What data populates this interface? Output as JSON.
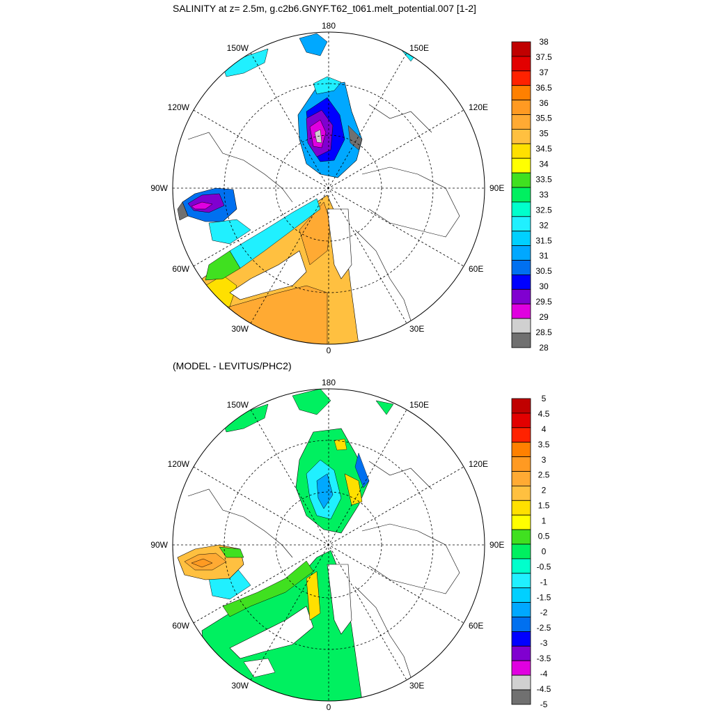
{
  "panels": [
    {
      "id": "salinity",
      "title": "SALINITY at z=   2.5m, g.c2b6.GNYF.T62_t061.melt_potential.007 [1-2]",
      "variable": "salinity",
      "colorbar": {
        "labels": [
          "38",
          "37.5",
          "37",
          "36.5",
          "36",
          "35.5",
          "35",
          "34.5",
          "34",
          "33.5",
          "33",
          "32.5",
          "32",
          "31.5",
          "31",
          "30.5",
          "30",
          "29.5",
          "29",
          "28.5",
          "28"
        ],
        "colors": [
          "#c00000",
          "#e20000",
          "#ff2200",
          "#ff8000",
          "#ff9a22",
          "#ffaa33",
          "#ffc040",
          "#ffe000",
          "#ffff00",
          "#40e020",
          "#00f060",
          "#00ffcc",
          "#20f0ff",
          "#00d0ff",
          "#00a8ff",
          "#0070f0",
          "#0000ff",
          "#8000d0",
          "#e000e0",
          "#d0d0d0",
          "#707070"
        ]
      }
    },
    {
      "id": "difference",
      "title": "(MODEL - LEVITUS/PHC2)",
      "variable": "salinity difference",
      "colorbar": {
        "labels": [
          "5",
          "4.5",
          "4",
          "3.5",
          "3",
          "2.5",
          "2",
          "1.5",
          "1",
          "0.5",
          "0",
          "-0.5",
          "-1",
          "-1.5",
          "-2",
          "-2.5",
          "-3",
          "-3.5",
          "-4",
          "-4.5",
          "-5"
        ],
        "colors": [
          "#c00000",
          "#e20000",
          "#ff2200",
          "#ff8000",
          "#ff9a22",
          "#ffaa33",
          "#ffc040",
          "#ffe000",
          "#ffff00",
          "#40e020",
          "#00f060",
          "#00ffcc",
          "#20f0ff",
          "#00d0ff",
          "#00a8ff",
          "#0070f0",
          "#0000ff",
          "#8000d0",
          "#e000e0",
          "#d0d0d0",
          "#707070"
        ]
      }
    }
  ],
  "longitude_labels": {
    "top": "180",
    "bottom": "0",
    "left": "90W",
    "right": "90E",
    "upper_left": "150W",
    "upper_right": "150E",
    "mid_left_upper": "120W",
    "mid_right_upper": "120E",
    "mid_left_lower": "60W",
    "mid_right_lower": "60E",
    "lower_left": "30W",
    "lower_right": "30E"
  }
}
